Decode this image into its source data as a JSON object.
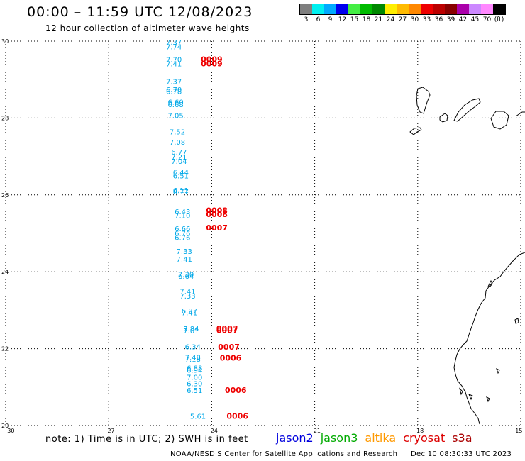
{
  "title": "00:00 – 11:59 UTC 12/08/2023",
  "subtitle": "12 hour collection of altimeter wave heights",
  "colorbar": {
    "colors": [
      "#7f7f7f",
      "#00f0f0",
      "#00aaff",
      "#0000ee",
      "#44ee44",
      "#00bb00",
      "#008800",
      "#ffee00",
      "#ffbb00",
      "#ff8800",
      "#ee0000",
      "#bb0000",
      "#880000",
      "#aa00aa",
      "#cc88ff",
      "#ff88ff",
      "#000000"
    ],
    "labels": [
      "3",
      "6",
      "9",
      "12",
      "15",
      "18",
      "21",
      "24",
      "27",
      "30",
      "33",
      "36",
      "39",
      "42",
      "45",
      "70",
      "(ft)"
    ]
  },
  "map": {
    "lon_range": [
      -30,
      -15
    ],
    "lat_range": [
      20,
      30
    ],
    "lon_ticks": [
      "−30",
      "−27",
      "−24",
      "−21",
      "−18",
      "−15"
    ],
    "lat_ticks": [
      "20",
      "22",
      "24",
      "26",
      "28",
      "30"
    ],
    "grid": "dotted",
    "swh_color": "#00a8e8",
    "time_color": "#ee0000",
    "swh_points": [
      {
        "lon": -25.1,
        "lat": 29.98,
        "swh": "7.37"
      },
      {
        "lon": -25.1,
        "lat": 29.86,
        "swh": "7.74"
      },
      {
        "lon": -25.1,
        "lat": 29.53,
        "swh": "7.70"
      },
      {
        "lon": -25.1,
        "lat": 29.42,
        "swh": "7.41"
      },
      {
        "lon": -25.1,
        "lat": 28.96,
        "swh": "7.37"
      },
      {
        "lon": -25.1,
        "lat": 28.75,
        "swh": "6.70"
      },
      {
        "lon": -25.1,
        "lat": 28.7,
        "swh": "6.78"
      },
      {
        "lon": -25.05,
        "lat": 28.42,
        "swh": "6.60"
      },
      {
        "lon": -25.05,
        "lat": 28.36,
        "swh": "6.68"
      },
      {
        "lon": -25.05,
        "lat": 28.07,
        "swh": "7.05"
      },
      {
        "lon": -25.0,
        "lat": 27.65,
        "swh": "7.52"
      },
      {
        "lon": -25.0,
        "lat": 27.38,
        "swh": "7.08"
      },
      {
        "lon": -24.95,
        "lat": 27.12,
        "swh": "6.77"
      },
      {
        "lon": -24.95,
        "lat": 26.99,
        "swh": "7.21"
      },
      {
        "lon": -24.95,
        "lat": 26.88,
        "swh": "7.04"
      },
      {
        "lon": -24.9,
        "lat": 26.6,
        "swh": "6.44"
      },
      {
        "lon": -24.9,
        "lat": 26.5,
        "swh": "6.51"
      },
      {
        "lon": -24.9,
        "lat": 26.13,
        "swh": "6.11"
      },
      {
        "lon": -24.9,
        "lat": 26.09,
        "swh": "6.77"
      },
      {
        "lon": -24.85,
        "lat": 25.57,
        "swh": "6.43"
      },
      {
        "lon": -24.85,
        "lat": 25.47,
        "swh": "7.10"
      },
      {
        "lon": -24.85,
        "lat": 25.13,
        "swh": "6.66"
      },
      {
        "lon": -24.85,
        "lat": 25.01,
        "swh": "6.76"
      },
      {
        "lon": -24.85,
        "lat": 24.9,
        "swh": "6.76"
      },
      {
        "lon": -24.8,
        "lat": 24.54,
        "swh": "7.33"
      },
      {
        "lon": -24.8,
        "lat": 24.34,
        "swh": "7.41"
      },
      {
        "lon": -24.75,
        "lat": 23.94,
        "swh": "7.30"
      },
      {
        "lon": -24.75,
        "lat": 23.89,
        "swh": "6.64"
      },
      {
        "lon": -24.7,
        "lat": 23.5,
        "swh": "7.41"
      },
      {
        "lon": -24.7,
        "lat": 23.38,
        "swh": "7.33"
      },
      {
        "lon": -24.65,
        "lat": 22.99,
        "swh": "6.97"
      },
      {
        "lon": -24.65,
        "lat": 22.94,
        "swh": "7.41"
      },
      {
        "lon": -24.6,
        "lat": 22.53,
        "swh": "7.84"
      },
      {
        "lon": -24.6,
        "lat": 22.47,
        "swh": "7.61"
      },
      {
        "lon": -24.55,
        "lat": 22.06,
        "swh": "6.34"
      },
      {
        "lon": -24.55,
        "lat": 21.78,
        "swh": "7.48"
      },
      {
        "lon": -24.55,
        "lat": 21.73,
        "swh": "7.18"
      },
      {
        "lon": -24.5,
        "lat": 21.5,
        "swh": "6.88"
      },
      {
        "lon": -24.5,
        "lat": 21.45,
        "swh": "6.94"
      },
      {
        "lon": -24.5,
        "lat": 21.26,
        "swh": "7.00"
      },
      {
        "lon": -24.5,
        "lat": 21.1,
        "swh": "6.30"
      },
      {
        "lon": -24.5,
        "lat": 20.92,
        "swh": "6.51"
      },
      {
        "lon": -24.4,
        "lat": 20.25,
        "swh": "5.61"
      }
    ],
    "time_points": [
      {
        "lon": -24.0,
        "lat": 29.53,
        "time": "0009"
      },
      {
        "lon": -24.0,
        "lat": 29.42,
        "time": "0009"
      },
      {
        "lon": -23.85,
        "lat": 25.6,
        "time": "0008"
      },
      {
        "lon": -23.85,
        "lat": 25.5,
        "time": "0008"
      },
      {
        "lon": -23.85,
        "lat": 25.15,
        "time": "0007"
      },
      {
        "lon": -23.55,
        "lat": 22.53,
        "time": "0007"
      },
      {
        "lon": -23.55,
        "lat": 22.48,
        "time": "0007"
      },
      {
        "lon": -23.5,
        "lat": 22.05,
        "time": "0007"
      },
      {
        "lon": -23.45,
        "lat": 21.76,
        "time": "0006"
      },
      {
        "lon": -23.3,
        "lat": 20.92,
        "time": "0006"
      },
      {
        "lon": -23.25,
        "lat": 20.25,
        "time": "0006"
      }
    ]
  },
  "note": "note:  1) Time is in UTC;  2) SWH is in feet",
  "legend": [
    {
      "label": "jason2",
      "color": "#0000dd"
    },
    {
      "label": "jason3",
      "color": "#00aa00"
    },
    {
      "label": "altika",
      "color": "#ff9900"
    },
    {
      "label": "cryosat",
      "color": "#dd0000"
    },
    {
      "label": "s3a",
      "color": "#aa0000"
    }
  ],
  "credit": "NOAA/NESDIS Center for Satellite Applications and Research",
  "timestamp": "Dec 10 08:30:33 UTC 2023"
}
